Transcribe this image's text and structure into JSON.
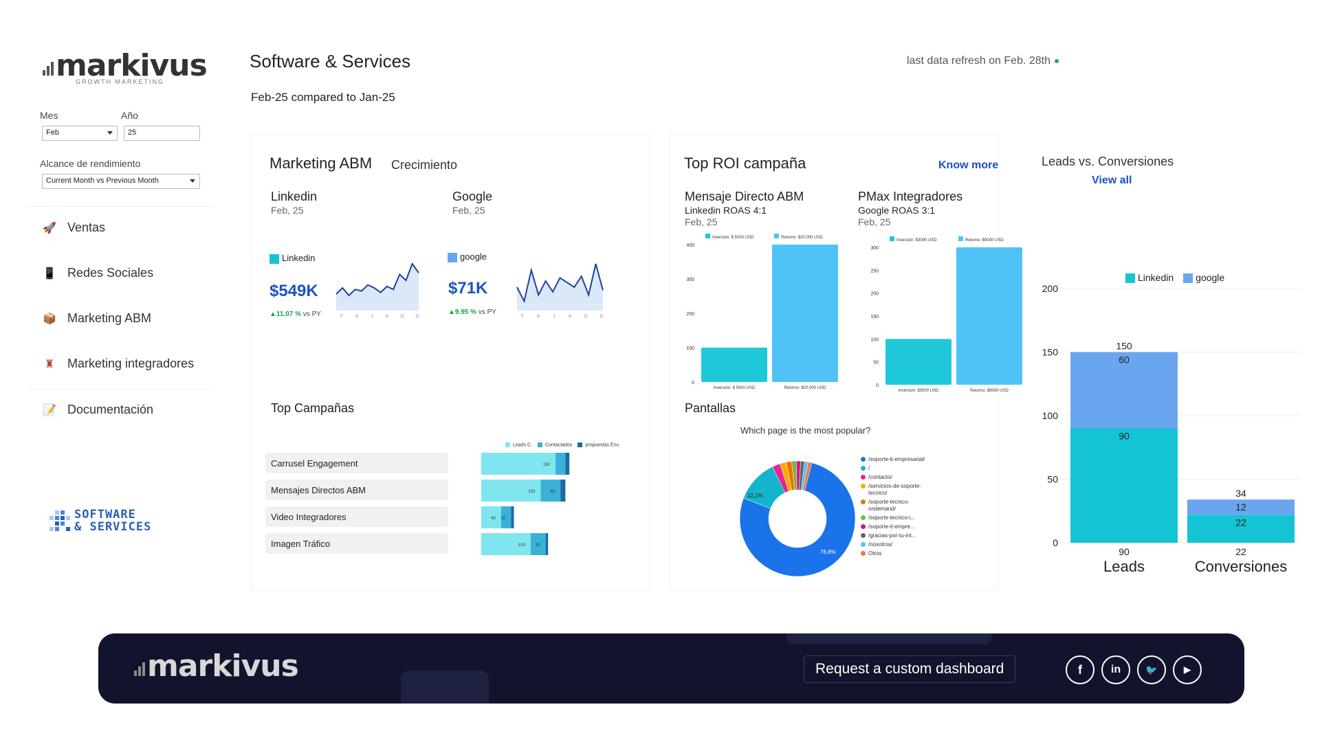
{
  "brand": {
    "name": "markivus",
    "tagline": "GROWTH MARKETING",
    "partner": [
      "SOFTWARE",
      "& SERVICES"
    ]
  },
  "filters": {
    "month_label": "Mes",
    "month_value": "Feb",
    "year_label": "Año",
    "year_value": "25",
    "scope_label": "Alcance de rendimiento",
    "scope_value": "Current Month vs Previous Month"
  },
  "nav": [
    {
      "label": "Ventas",
      "icon": "rocket-icon"
    },
    {
      "label": "Redes Sociales",
      "icon": "phone-icon"
    },
    {
      "label": "Marketing ABM",
      "icon": "box-icon"
    },
    {
      "label": "Marketing integradores",
      "icon": "user-icon"
    },
    {
      "label": "Documentación",
      "icon": "document-icon"
    }
  ],
  "header": {
    "title": "Software & Services",
    "period": "Feb-25 compared to Jan-25",
    "refresh": "last data refresh on Feb. 28th"
  },
  "abm": {
    "title": "Marketing ABM",
    "subtitle": "Crecimiento",
    "linkedin": {
      "name": "Linkedin",
      "date": "Feb, 25",
      "legend": "Linkedin",
      "value": "$549K",
      "delta": "▲11.07 %",
      "delta_suffix": "vs PY",
      "months": [
        "F",
        "A",
        "J",
        "A",
        "O",
        "D"
      ],
      "spark": [
        22,
        30,
        20,
        28,
        26,
        34,
        30,
        24,
        32,
        28,
        48,
        40,
        62,
        50
      ]
    },
    "google": {
      "name": "Google",
      "date": "Feb, 25",
      "legend": "google",
      "value": "$71K",
      "delta": "▲9.95 %",
      "delta_suffix": "vs PY",
      "months": [
        "F",
        "A",
        "J",
        "A",
        "O",
        "D"
      ],
      "spark": [
        30,
        12,
        52,
        20,
        38,
        24,
        42,
        36,
        30,
        44,
        20,
        60,
        26
      ]
    }
  },
  "top_campaigns": {
    "title": "Top Campañas",
    "legend": [
      "Leads C.",
      "Contactados",
      "propuestas Env."
    ],
    "rows": [
      {
        "label": "Carrusel Engagement",
        "values": [
          150,
          20,
          8
        ],
        "labels": [
          "150",
          "",
          ""
        ]
      },
      {
        "label": "Mensajes Directos ABM",
        "values": [
          120,
          40,
          10
        ],
        "labels": [
          "120",
          "40",
          ""
        ]
      },
      {
        "label": "Video Integradores",
        "values": [
          40,
          20,
          6
        ],
        "labels": [
          "40",
          "20",
          ""
        ]
      },
      {
        "label": "Imagen Tráfico",
        "values": [
          100,
          30,
          5
        ],
        "labels": [
          "100",
          "30",
          ""
        ]
      }
    ]
  },
  "roi": {
    "title": "Top ROI campaña",
    "link": "Know more",
    "left": {
      "name": "Mensaje Directo ABM",
      "sub": "Linkedin ROAS 4:1",
      "date": "Feb, 25",
      "legend": [
        "Inversión: $ 5000 USD",
        "Retorno: $20,000 USD"
      ],
      "yticks": [
        "400",
        "300",
        "200",
        "100",
        "0"
      ],
      "values": [
        100,
        400
      ],
      "ymax": 400,
      "xlabels": [
        "Inversión: $ 5000 USD",
        "Retorno: $20,000 USD"
      ]
    },
    "right": {
      "name": "PMax Integradores",
      "sub": "Google ROAS 3:1",
      "date": "Feb, 25",
      "legend": [
        "Inversión: $3000 USD",
        "Retorno: $9000 USD"
      ],
      "yticks": [
        "300",
        "250",
        "200",
        "150",
        "100",
        "50",
        "0"
      ],
      "values": [
        100,
        300
      ],
      "ymax": 300,
      "xlabels": [
        "Inversión: $3000 USD",
        "Retorno: $9000 USD"
      ]
    }
  },
  "pantallas": {
    "title": "Pantallas",
    "question": "Which page is the most popular?",
    "slices": [
      {
        "label": "/soporte-ti-empresarial/",
        "value": 76.8,
        "color": "#1a73e8"
      },
      {
        "label": "/",
        "value": 12.1,
        "color": "#12b5cb"
      },
      {
        "label": "/contacto/",
        "value": 2.2,
        "color": "#e52592"
      },
      {
        "label": "/servicios-de-soporte-tecnico/",
        "value": 1.8,
        "color": "#f9ab00"
      },
      {
        "label": "/soporte-tecnico-ondemand/",
        "value": 1.5,
        "color": "#e8710a"
      },
      {
        "label": "/soporte-tecnico-i...",
        "value": 1.3,
        "color": "#7cb342"
      },
      {
        "label": "/soporte-it-empre...",
        "value": 1.2,
        "color": "#d01884"
      },
      {
        "label": "/gracias-por-tu-int...",
        "value": 1.1,
        "color": "#666666"
      },
      {
        "label": "/nosotros/",
        "value": 1.0,
        "color": "#4fc3f7"
      },
      {
        "label": "Otros",
        "value": 1.0,
        "color": "#ff7043"
      }
    ],
    "pct_large": "76,8%",
    "pct_small": "12,1%"
  },
  "leads": {
    "title": "Leads vs. Conversiones",
    "link": "View all",
    "legend": [
      "Linkedin",
      "google"
    ],
    "yticks": [
      "200",
      "150",
      "100",
      "50",
      "0"
    ],
    "chart_data": {
      "type": "bar",
      "categories": [
        "Leads",
        "Conversiones"
      ],
      "series": [
        {
          "name": "Linkedin",
          "values": [
            90,
            22
          ]
        },
        {
          "name": "google",
          "values": [
            60,
            12
          ]
        }
      ],
      "totals": [
        "150",
        "34"
      ],
      "bottom_labels": [
        "90",
        "22"
      ],
      "ylim": [
        0,
        200
      ]
    }
  },
  "footer": {
    "cta": "Request a custom dashboard",
    "social": [
      "f",
      "in",
      "🐦",
      "▶"
    ]
  },
  "colors": {
    "cyan": "#1fc8d8",
    "lightblue": "#4fc3f7",
    "googleblue": "#6aa6ef",
    "linkedin": "#14c4d4"
  }
}
